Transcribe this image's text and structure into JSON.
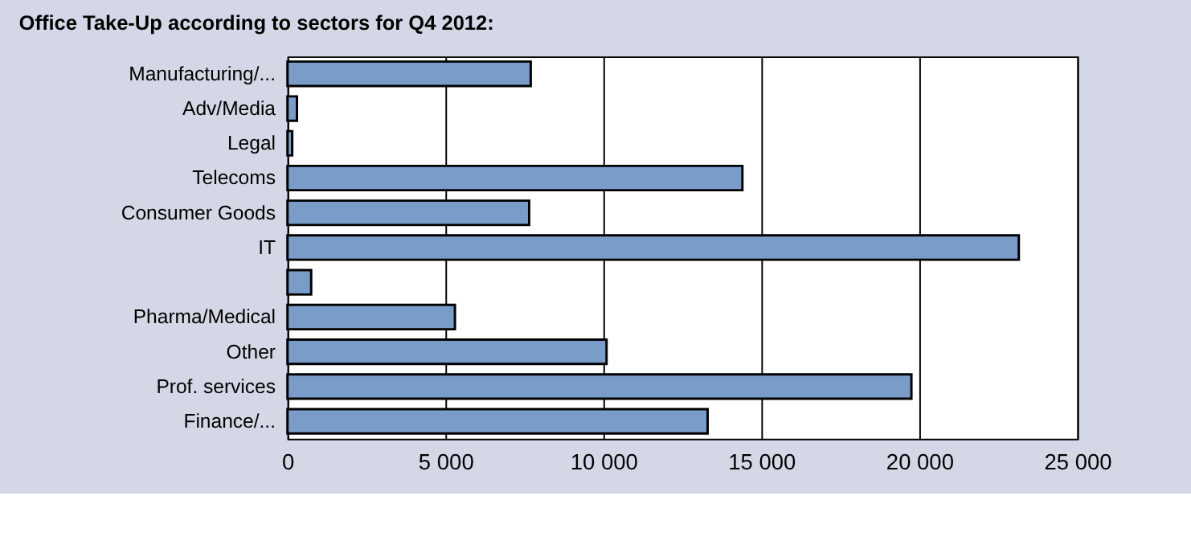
{
  "chart_data": {
    "type": "bar",
    "orientation": "horizontal",
    "title": "Office Take-Up according to sectors for Q4 2012:",
    "categories": [
      "Manufacturing/...",
      "Adv/Media",
      "Legal",
      "Telecoms",
      "Consumer Goods",
      "IT",
      null,
      "Pharma/Medical",
      "Other",
      "Prof. services",
      "Finance/..."
    ],
    "values": [
      7700,
      300,
      150,
      14400,
      7650,
      23150,
      750,
      5300,
      10100,
      19750,
      13300
    ],
    "color": "#7a9cc8",
    "xlim": [
      0,
      25000
    ],
    "xticks": [
      0,
      {
        "value": 5000,
        "label": "5 000"
      },
      {
        "value": 10000,
        "label": "10 000"
      },
      {
        "value": 15000,
        "label": "15 000"
      },
      {
        "value": 20000,
        "label": "20 000"
      },
      {
        "value": 25000,
        "label": "25 000"
      }
    ],
    "grid": "x"
  }
}
